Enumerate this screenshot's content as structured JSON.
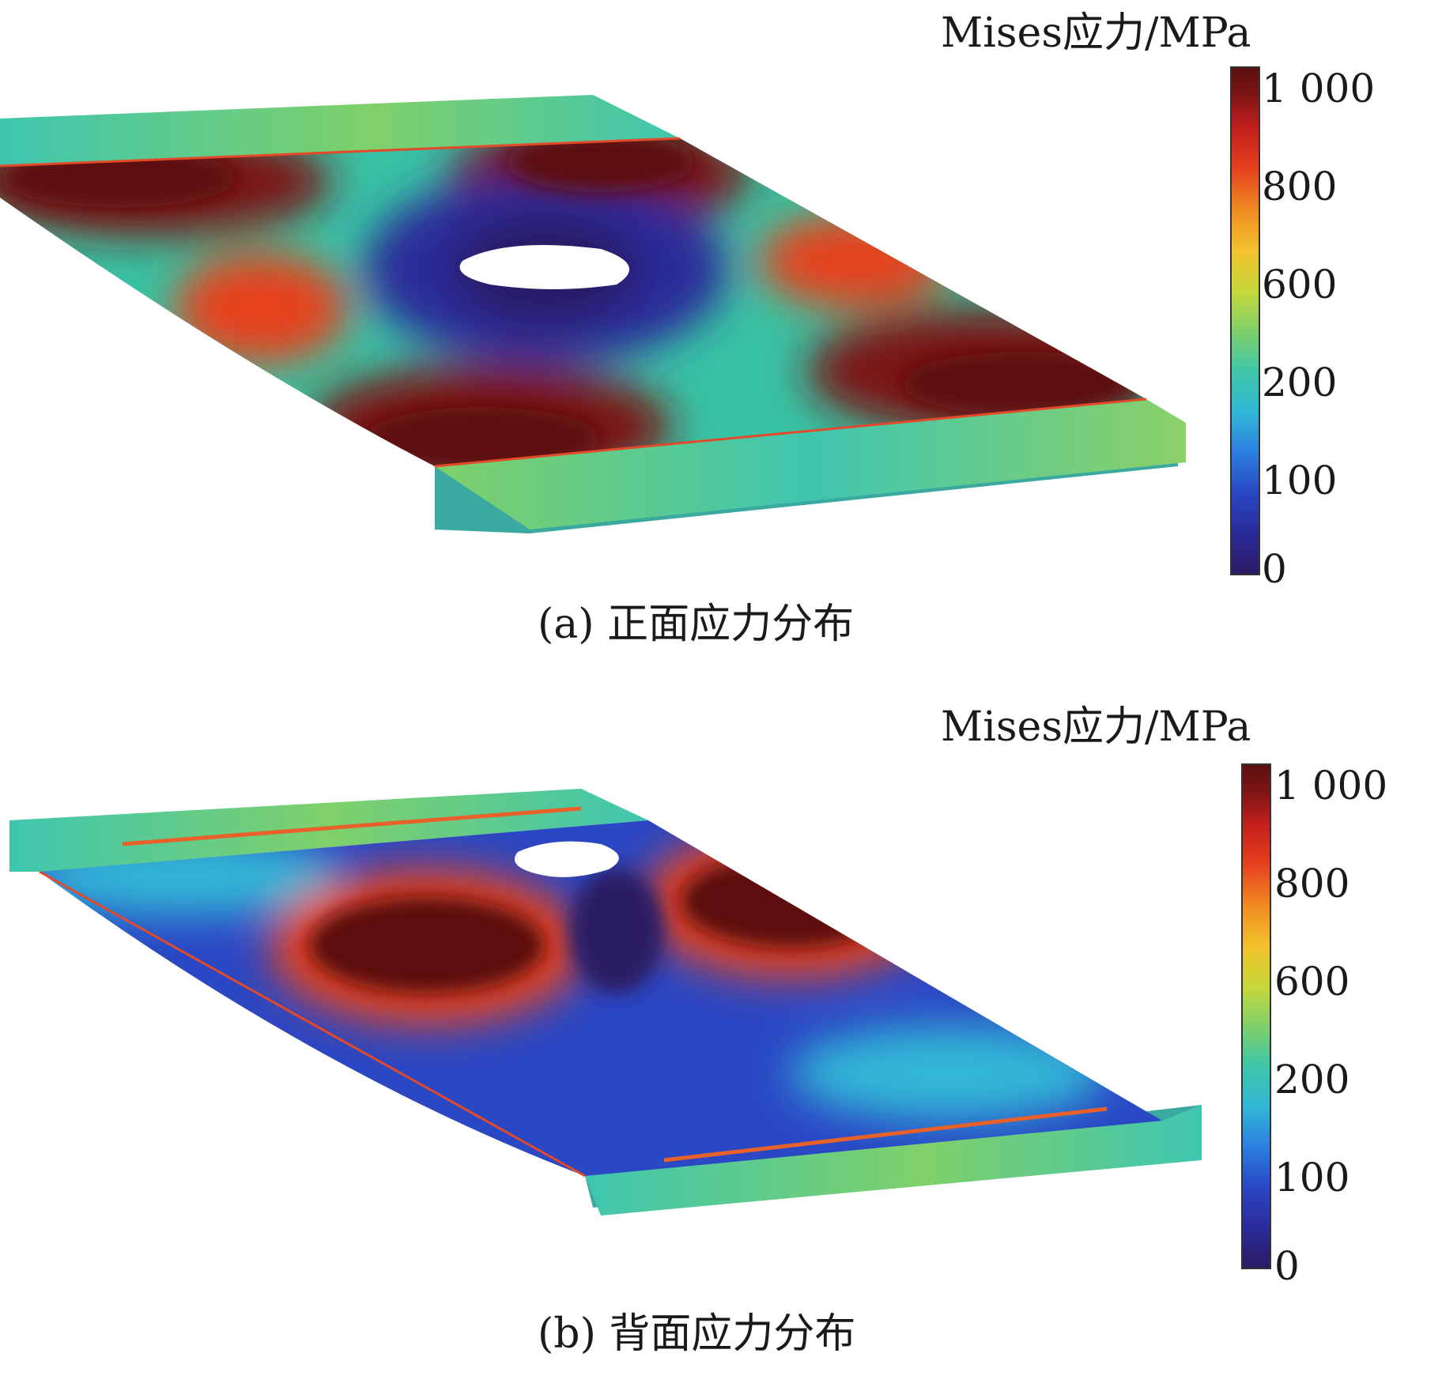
{
  "panels": [
    {
      "legend_title": "Mises应力/MPa",
      "tick_labels": [
        "1 000",
        "800",
        "600",
        "200",
        "100",
        "0"
      ],
      "caption": "(a) 正面应力分布"
    },
    {
      "legend_title": "Mises应力/MPa",
      "tick_labels": [
        "1 000",
        "800",
        "600",
        "200",
        "100",
        "0"
      ],
      "caption": "(b) 背面应力分布"
    }
  ],
  "colormap": [
    "#2b1a63",
    "#2a47c4",
    "#32b7d6",
    "#7fd06a",
    "#f3c22d",
    "#e6421f",
    "#5b1010"
  ]
}
